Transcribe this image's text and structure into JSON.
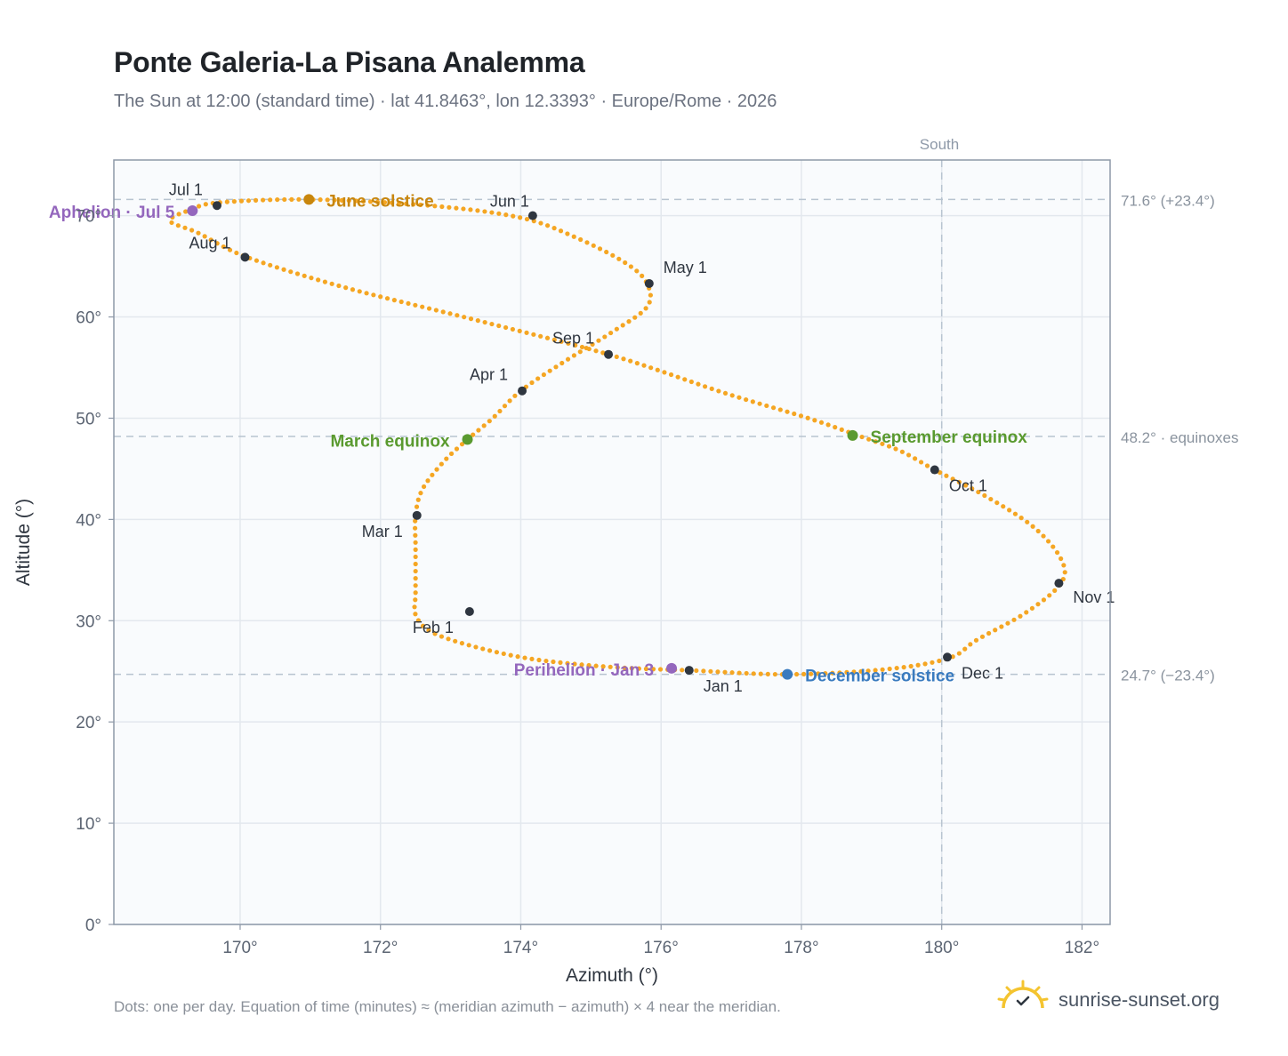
{
  "header": {
    "title": "Ponte Galeria-La Pisana Analemma",
    "subtitle": "The Sun at 12:00 (standard time) · lat 41.8463°, lon 12.3393° · Europe/Rome · 2026"
  },
  "footer": {
    "note": "Dots: one per day. Equation of time (minutes) ≈ (meridian azimuth − azimuth) × 4 near the meridian.",
    "brand": "sunrise-sunset.org"
  },
  "colors": {
    "curve": "#f5a623",
    "month_marker": "#2f3640",
    "solstice_june": "#c8860d",
    "equinox": "#5a9a2f",
    "solstice_december": "#3a7bbf",
    "apsis": "#9467bd",
    "plot_bg": "#f9fbfd",
    "grid": "#e3e8ee",
    "axis": "#8e99a8"
  },
  "chart_data": {
    "type": "scatter",
    "xlabel": "Azimuth (°)",
    "ylabel": "Altitude (°)",
    "xlim": [
      168.2,
      182.4
    ],
    "ylim": [
      0,
      75.5
    ],
    "x_ticks": [
      170,
      172,
      174,
      176,
      178,
      180,
      182
    ],
    "x_tick_labels": [
      "170°",
      "172°",
      "174°",
      "176°",
      "178°",
      "180°",
      "182°"
    ],
    "y_ticks": [
      0,
      10,
      20,
      30,
      40,
      50,
      60,
      70
    ],
    "y_tick_labels": [
      "0°",
      "10°",
      "20°",
      "30°",
      "40°",
      "50°",
      "60°",
      "70°"
    ],
    "grid": true,
    "south_line": {
      "azimuth": 180,
      "label": "South"
    },
    "reference_lines": [
      {
        "altitude": 71.6,
        "label": "71.6° (+23.4°)"
      },
      {
        "altitude": 48.2,
        "label": "48.2° · equinoxes"
      },
      {
        "altitude": 24.7,
        "label": "24.7° (−23.4°)"
      }
    ],
    "analemma": {
      "series_points": [
        [
          176.4,
          25.1
        ],
        [
          175.6,
          25.3
        ],
        [
          174.8,
          25.7
        ],
        [
          174.0,
          26.4
        ],
        [
          173.2,
          27.7
        ],
        [
          172.7,
          29.0
        ],
        [
          172.5,
          30.6
        ],
        [
          172.5,
          32.6
        ],
        [
          172.5,
          34.9
        ],
        [
          172.5,
          37.4
        ],
        [
          172.5,
          40.4
        ],
        [
          172.6,
          43.0
        ],
        [
          172.9,
          45.7
        ],
        [
          173.24,
          47.9
        ],
        [
          173.6,
          50.0
        ],
        [
          174.0,
          52.7
        ],
        [
          174.6,
          55.5
        ],
        [
          175.3,
          58.5
        ],
        [
          175.8,
          61.0
        ],
        [
          175.8,
          63.3
        ],
        [
          175.5,
          65.3
        ],
        [
          174.8,
          67.8
        ],
        [
          174.0,
          69.8
        ],
        [
          172.7,
          71.0
        ],
        [
          171.0,
          71.6
        ],
        [
          169.7,
          71.3
        ],
        [
          169.3,
          70.6
        ],
        [
          169.0,
          69.5
        ],
        [
          169.4,
          68.3
        ],
        [
          170.1,
          65.9
        ],
        [
          171.5,
          62.9
        ],
        [
          173.3,
          59.8
        ],
        [
          175.3,
          56.2
        ],
        [
          176.9,
          52.5
        ],
        [
          178.1,
          50.0
        ],
        [
          178.8,
          48.3
        ],
        [
          179.4,
          46.8
        ],
        [
          179.9,
          44.9
        ],
        [
          180.6,
          42.4
        ],
        [
          181.3,
          39.3
        ],
        [
          181.7,
          36.1
        ],
        [
          181.7,
          33.7
        ],
        [
          181.2,
          30.8
        ],
        [
          180.5,
          28.1
        ],
        [
          180.1,
          26.3
        ],
        [
          179.2,
          25.2
        ],
        [
          177.8,
          24.7
        ],
        [
          176.4,
          25.1
        ]
      ]
    },
    "month_markers": [
      {
        "label": "Jan 1",
        "x": 176.4,
        "y": 25.1
      },
      {
        "label": "Feb 1",
        "x": 173.27,
        "y": 30.9
      },
      {
        "label": "Mar 1",
        "x": 172.52,
        "y": 40.4
      },
      {
        "label": "Apr 1",
        "x": 174.02,
        "y": 52.7
      },
      {
        "label": "May 1",
        "x": 175.83,
        "y": 63.3
      },
      {
        "label": "Jun 1",
        "x": 174.17,
        "y": 70.0
      },
      {
        "label": "Jul 1",
        "x": 169.67,
        "y": 71.0
      },
      {
        "label": "Aug 1",
        "x": 170.07,
        "y": 65.9
      },
      {
        "label": "Sep 1",
        "x": 175.25,
        "y": 56.3
      },
      {
        "label": "Oct 1",
        "x": 179.9,
        "y": 44.9
      },
      {
        "label": "Nov 1",
        "x": 181.67,
        "y": 33.7
      },
      {
        "label": "Dec 1",
        "x": 180.08,
        "y": 26.4
      }
    ],
    "events": [
      {
        "label": "June solstice",
        "x": 170.98,
        "y": 71.6,
        "kind": "solstice_june"
      },
      {
        "label": "March equinox",
        "x": 173.24,
        "y": 47.9,
        "kind": "equinox"
      },
      {
        "label": "September equinox",
        "x": 178.73,
        "y": 48.3,
        "kind": "equinox"
      },
      {
        "label": "December solstice",
        "x": 177.8,
        "y": 24.7,
        "kind": "solstice_december"
      },
      {
        "label": "Aphelion · Jul 5",
        "x": 169.32,
        "y": 70.5,
        "kind": "apsis"
      },
      {
        "label": "Perihelion · Jan 3",
        "x": 176.15,
        "y": 25.3,
        "kind": "apsis"
      }
    ]
  }
}
